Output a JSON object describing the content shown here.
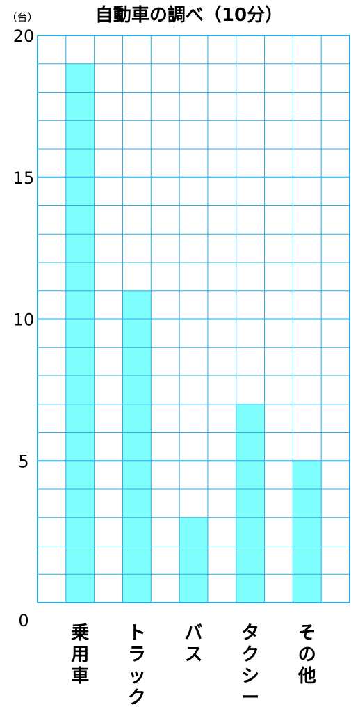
{
  "chart_data": {
    "type": "bar",
    "title": "自動車の調べ（10分）",
    "ylabel": "（台）",
    "xlabel": "",
    "categories": [
      "乗用車",
      "トラック",
      "バス",
      "タクシー",
      "その他"
    ],
    "values": [
      19,
      11,
      3,
      7,
      5
    ],
    "ylim": [
      0,
      20
    ],
    "yticks": [
      "0",
      "5",
      "10",
      "15",
      "20"
    ],
    "grid": true,
    "bar_color": "#80ffff",
    "grid_color": "#29abe2"
  }
}
